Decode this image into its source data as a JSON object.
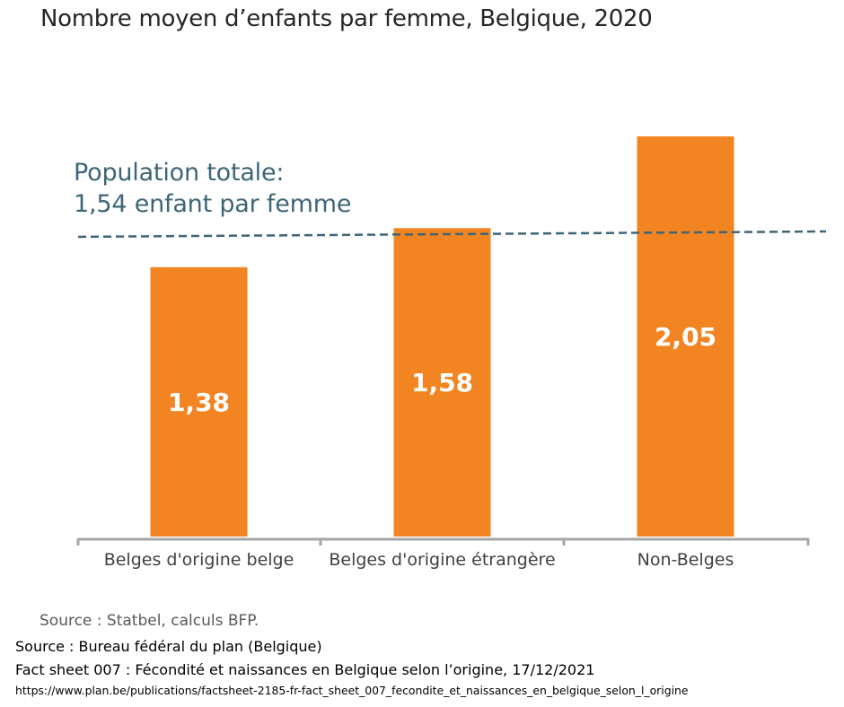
{
  "chart_data": {
    "type": "bar",
    "title": "Nombre moyen d’enfants par femme, Belgique, 2020",
    "categories": [
      "Belges d'origine belge",
      "Belges d'origine étrangère",
      "Non-Belges"
    ],
    "values": [
      1.38,
      1.58,
      2.05
    ],
    "value_labels": [
      "1,38",
      "1,58",
      "2,05"
    ],
    "ylim": [
      0,
      2.05
    ],
    "bar_color": "#f28522",
    "reference_line": {
      "value": 1.54,
      "label_line1": "Population totale:",
      "label_line2": "1,54 enfant par femme",
      "color": "#3d6577",
      "style": "dashed"
    },
    "grid": false,
    "legend": "none",
    "source": "Source : Statbel, calculs BFP."
  },
  "captions": {
    "line1": "Source : Bureau fédéral du plan (Belgique)",
    "line2": "Fact sheet 007 : Fécondité et naissances en Belgique selon l’origine, 17/12/2021",
    "line3": "https://www.plan.be/publications/factsheet-2185-fr-fact_sheet_007_fecondite_et_naissances_en_belgique_selon_l_origine"
  }
}
